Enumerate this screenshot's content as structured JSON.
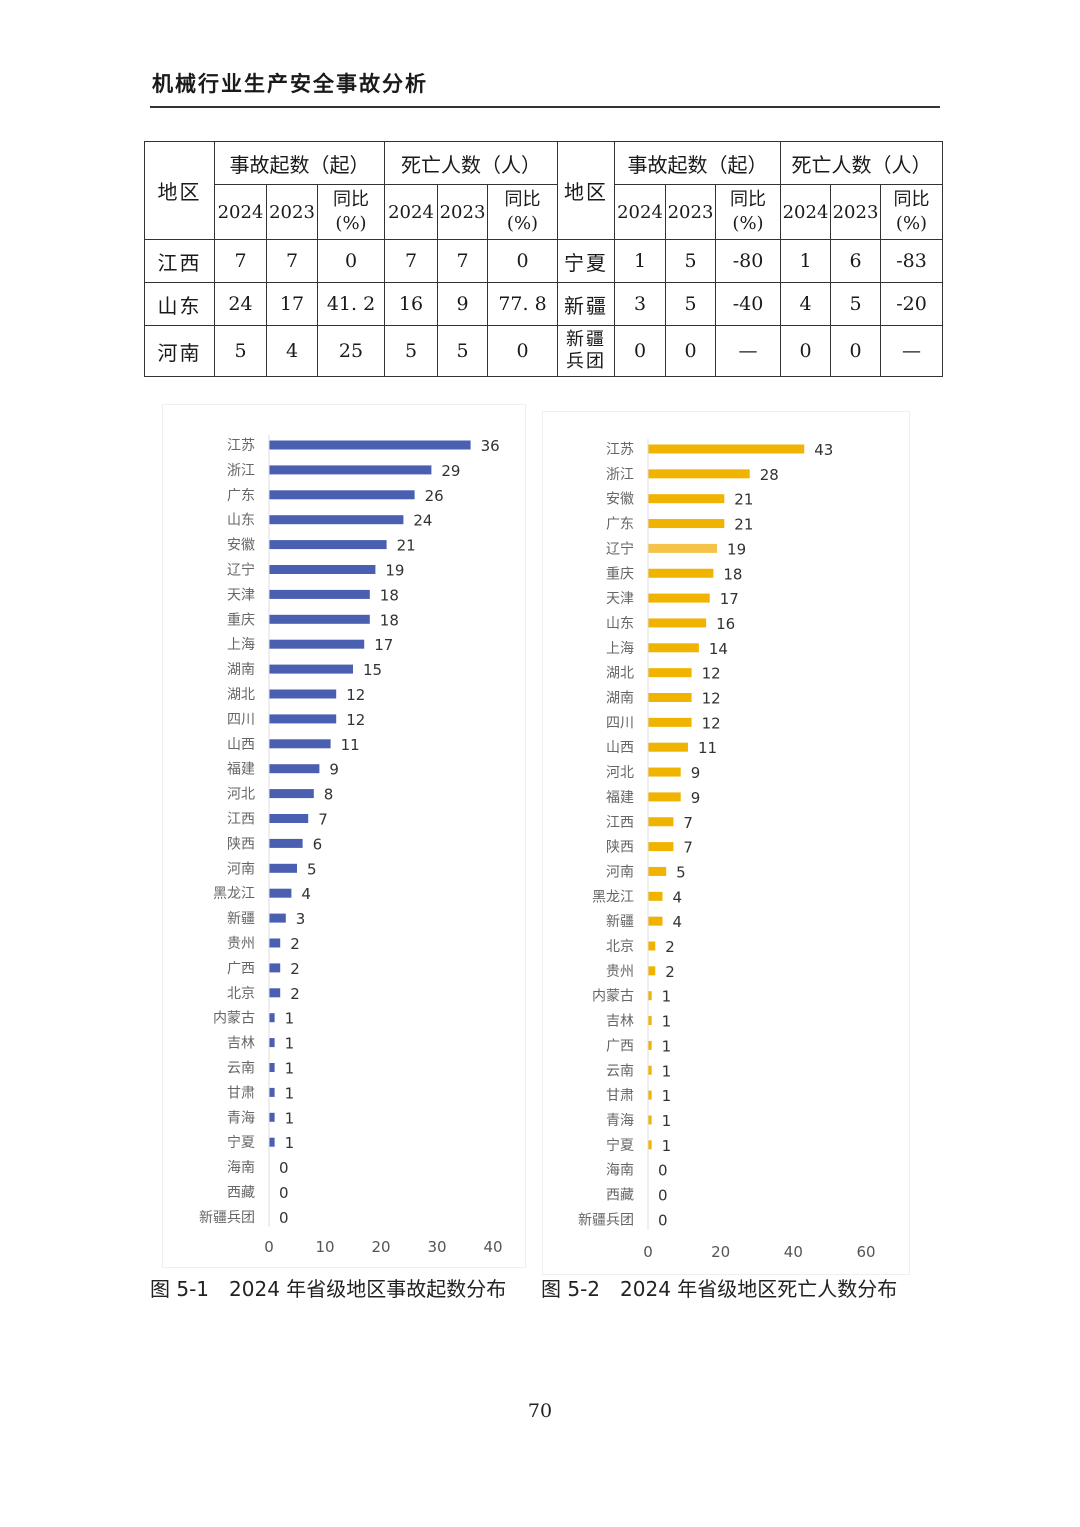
{
  "header": {
    "title": "机械行业生产安全事故分析"
  },
  "table": {
    "region_label": "地区",
    "accidents_label": "事故起数（起）",
    "deaths_label": "死亡人数（人）",
    "year_2024": "2024",
    "year_2023": "2023",
    "yoy_label": "同比",
    "yoy_unit": "(%)",
    "left_rows": [
      {
        "region": "江西",
        "a2024": "7",
        "a2023": "7",
        "ayoy": "0",
        "d2024": "7",
        "d2023": "7",
        "dyoy": "0"
      },
      {
        "region": "山东",
        "a2024": "24",
        "a2023": "17",
        "ayoy": "41. 2",
        "d2024": "16",
        "d2023": "9",
        "dyoy": "77. 8"
      },
      {
        "region": "河南",
        "a2024": "5",
        "a2023": "4",
        "ayoy": "25",
        "d2024": "5",
        "d2023": "5",
        "dyoy": "0"
      }
    ],
    "right_rows": [
      {
        "region": "宁夏",
        "a2024": "1",
        "a2023": "5",
        "ayoy": "-80",
        "d2024": "1",
        "d2023": "6",
        "dyoy": "-83"
      },
      {
        "region": "新疆",
        "a2024": "3",
        "a2023": "5",
        "ayoy": "-40",
        "d2024": "4",
        "d2023": "5",
        "dyoy": "-20"
      },
      {
        "region": "新疆兵团",
        "a2024": "0",
        "a2023": "0",
        "ayoy": "—",
        "d2024": "0",
        "d2023": "0",
        "dyoy": "—"
      }
    ]
  },
  "chart_data": [
    {
      "type": "bar",
      "orientation": "horizontal",
      "color": "#4a5fb0",
      "categories": [
        "江苏",
        "浙江",
        "广东",
        "山东",
        "安徽",
        "辽宁",
        "天津",
        "重庆",
        "上海",
        "湖南",
        "湖北",
        "四川",
        "山西",
        "福建",
        "河北",
        "江西",
        "陕西",
        "河南",
        "黑龙江",
        "新疆",
        "贵州",
        "广西",
        "北京",
        "内蒙古",
        "吉林",
        "云南",
        "甘肃",
        "青海",
        "宁夏",
        "海南",
        "西藏",
        "新疆兵团"
      ],
      "values": [
        36,
        29,
        26,
        24,
        21,
        19,
        18,
        18,
        17,
        15,
        12,
        12,
        11,
        9,
        8,
        7,
        6,
        5,
        4,
        3,
        2,
        2,
        2,
        1,
        1,
        1,
        1,
        1,
        1,
        0,
        0,
        0
      ],
      "xlim": [
        0,
        40
      ],
      "xticks": [
        "0",
        "10",
        "20",
        "30",
        "40"
      ],
      "grid": false
    },
    {
      "type": "bar",
      "orientation": "horizontal",
      "color": "#f0b400",
      "highlight_color": "#f5c24a",
      "highlight_index": 4,
      "categories": [
        "江苏",
        "浙江",
        "安徽",
        "广东",
        "辽宁",
        "重庆",
        "天津",
        "山东",
        "上海",
        "湖北",
        "湖南",
        "四川",
        "山西",
        "河北",
        "福建",
        "江西",
        "陕西",
        "河南",
        "黑龙江",
        "新疆",
        "北京",
        "贵州",
        "内蒙古",
        "吉林",
        "广西",
        "云南",
        "甘肃",
        "青海",
        "宁夏",
        "海南",
        "西藏",
        "新疆兵团"
      ],
      "values": [
        43,
        28,
        21,
        21,
        19,
        18,
        17,
        16,
        14,
        12,
        12,
        12,
        11,
        9,
        9,
        7,
        7,
        5,
        4,
        4,
        2,
        2,
        1,
        1,
        1,
        1,
        1,
        1,
        1,
        0,
        0,
        0
      ],
      "xlim": [
        0,
        60
      ],
      "xticks": [
        "0",
        "20",
        "40",
        "60"
      ],
      "grid": false
    }
  ],
  "captions": {
    "fig1": "图 5-1　2024 年省级地区事故起数分布",
    "fig2": "图 5-2　2024 年省级地区死亡人数分布"
  },
  "page_number": "70"
}
